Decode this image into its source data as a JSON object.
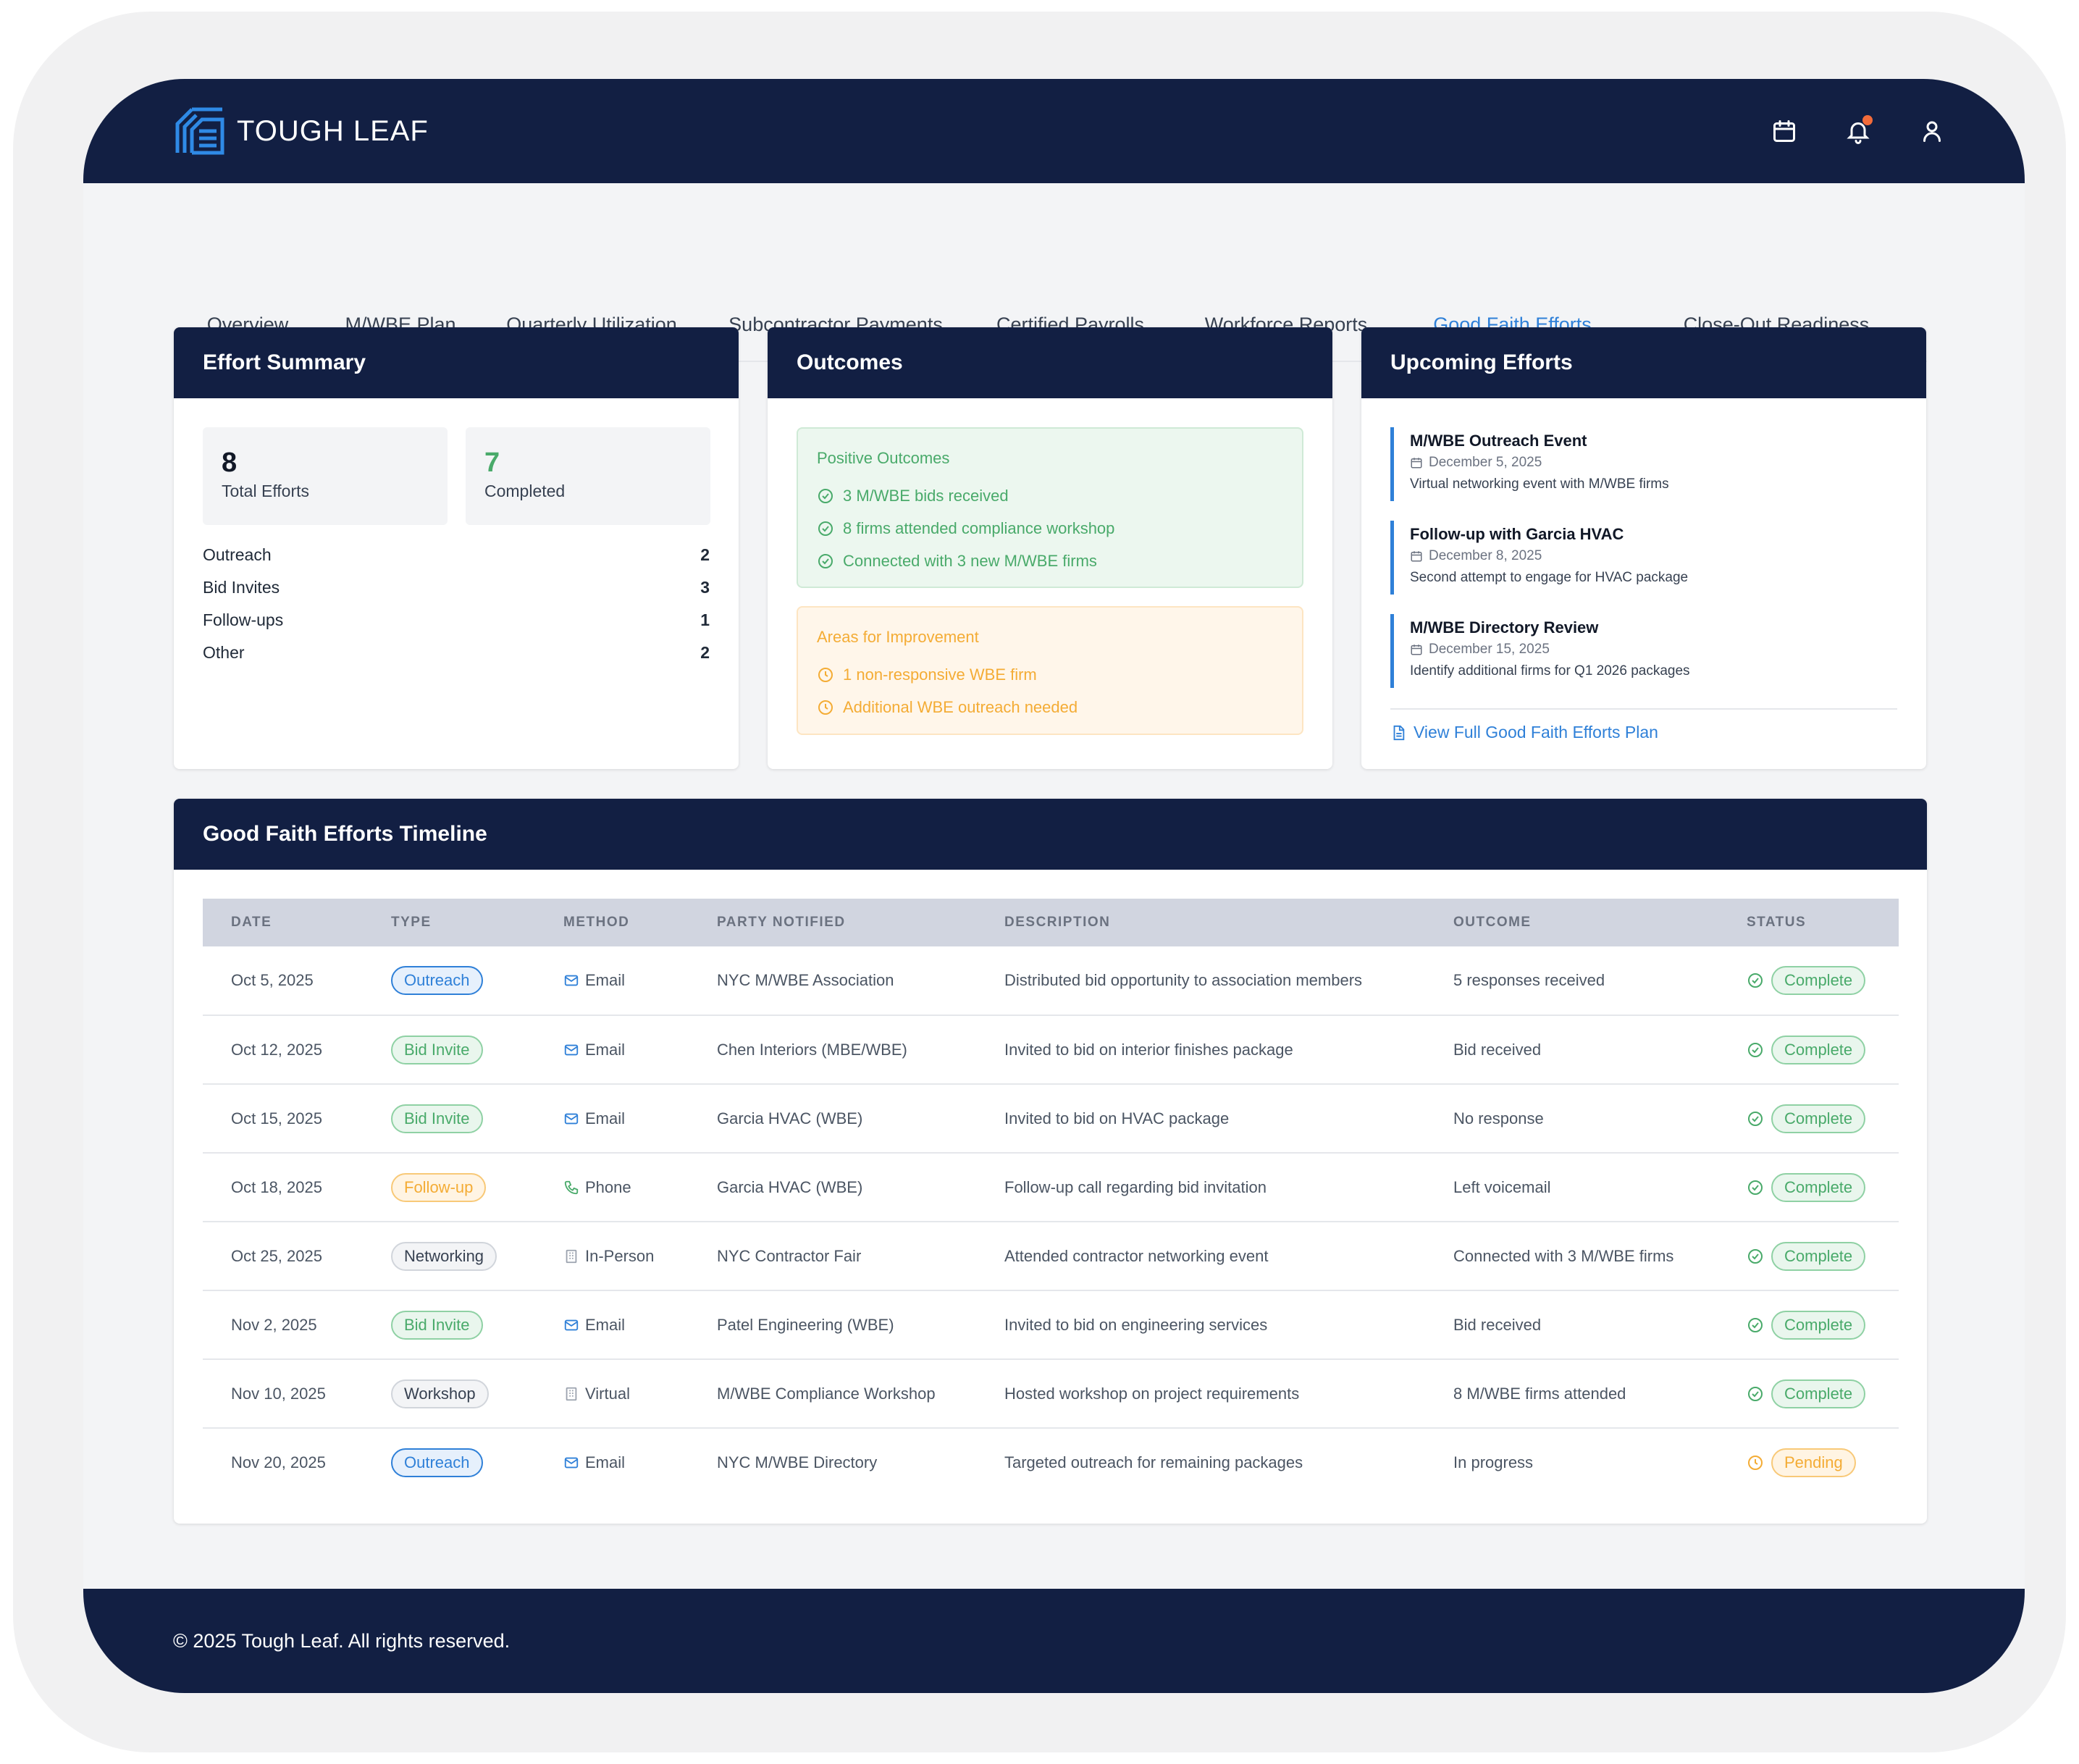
{
  "brand": {
    "name": "TOUGH LEAF"
  },
  "header": {
    "icons": [
      "calendar-icon",
      "bell-icon",
      "user-icon"
    ],
    "notification_color": "#f26b3a"
  },
  "tabs": [
    {
      "label": "Overview"
    },
    {
      "label": "M/WBE Plan"
    },
    {
      "label": "Quarterly Utilization"
    },
    {
      "label": "Subcontractor Payments"
    },
    {
      "label": "Certified Payrolls"
    },
    {
      "label": "Workforce Reports"
    },
    {
      "label": "Good Faith Efforts",
      "active": true
    },
    {
      "label": "Close-Out Readiness"
    }
  ],
  "effort_summary": {
    "title": "Effort Summary",
    "total": {
      "value": "8",
      "label": "Total Efforts"
    },
    "completed": {
      "value": "7",
      "label": "Completed"
    },
    "breakdown": [
      {
        "label": "Outreach",
        "value": "2"
      },
      {
        "label": "Bid Invites",
        "value": "3"
      },
      {
        "label": "Follow-ups",
        "value": "1"
      },
      {
        "label": "Other",
        "value": "2"
      }
    ]
  },
  "outcomes": {
    "title": "Outcomes",
    "positive": {
      "title": "Positive Outcomes",
      "items": [
        "3 M/WBE bids received",
        "8 firms attended compliance workshop",
        "Connected with 3 new M/WBE firms"
      ]
    },
    "improvement": {
      "title": "Areas for Improvement",
      "items": [
        "1 non-responsive WBE firm",
        "Additional WBE outreach needed"
      ]
    }
  },
  "upcoming": {
    "title": "Upcoming Efforts",
    "items": [
      {
        "title": "M/WBE Outreach Event",
        "date": "December 5, 2025",
        "desc": "Virtual networking event with M/WBE firms"
      },
      {
        "title": "Follow-up with Garcia HVAC",
        "date": "December 8, 2025",
        "desc": "Second attempt to engage for HVAC package"
      },
      {
        "title": "M/WBE Directory Review",
        "date": "December 15, 2025",
        "desc": "Identify additional firms for Q1 2026 packages"
      }
    ],
    "link": "View Full Good Faith Efforts Plan"
  },
  "timeline": {
    "title": "Good Faith Efforts Timeline",
    "columns": [
      "DATE",
      "TYPE",
      "METHOD",
      "PARTY NOTIFIED",
      "DESCRIPTION",
      "OUTCOME",
      "STATUS"
    ],
    "rows": [
      {
        "date": "Oct 5, 2025",
        "type": "Outreach",
        "type_style": "outreach",
        "method": "Email",
        "method_icon": "mail",
        "party": "NYC M/WBE Association",
        "desc": "Distributed bid opportunity to association members",
        "outcome": "5 responses received",
        "status": "Complete"
      },
      {
        "date": "Oct 12, 2025",
        "type": "Bid Invite",
        "type_style": "bid",
        "method": "Email",
        "method_icon": "mail",
        "party": "Chen Interiors (MBE/WBE)",
        "desc": "Invited to bid on interior finishes package",
        "outcome": "Bid received",
        "status": "Complete"
      },
      {
        "date": "Oct 15, 2025",
        "type": "Bid Invite",
        "type_style": "bid",
        "method": "Email",
        "method_icon": "mail",
        "party": "Garcia HVAC (WBE)",
        "desc": "Invited to bid on HVAC package",
        "outcome": "No response",
        "status": "Complete"
      },
      {
        "date": "Oct 18, 2025",
        "type": "Follow-up",
        "type_style": "follow",
        "method": "Phone",
        "method_icon": "phone",
        "party": "Garcia HVAC (WBE)",
        "desc": "Follow-up call regarding bid invitation",
        "outcome": "Left voicemail",
        "status": "Complete"
      },
      {
        "date": "Oct 25, 2025",
        "type": "Networking",
        "type_style": "gray",
        "method": "In-Person",
        "method_icon": "building",
        "party": "NYC Contractor Fair",
        "desc": "Attended contractor networking event",
        "outcome": "Connected with 3 M/WBE firms",
        "status": "Complete"
      },
      {
        "date": "Nov 2, 2025",
        "type": "Bid Invite",
        "type_style": "bid",
        "method": "Email",
        "method_icon": "mail",
        "party": "Patel Engineering (WBE)",
        "desc": "Invited to bid on engineering services",
        "outcome": "Bid received",
        "status": "Complete"
      },
      {
        "date": "Nov 10, 2025",
        "type": "Workshop",
        "type_style": "gray",
        "method": "Virtual",
        "method_icon": "building",
        "party": "M/WBE Compliance Workshop",
        "desc": "Hosted workshop on project requirements",
        "outcome": "8 M/WBE firms attended",
        "status": "Complete"
      },
      {
        "date": "Nov 20, 2025",
        "type": "Outreach",
        "type_style": "outreach",
        "method": "Email",
        "method_icon": "mail",
        "party": "NYC M/WBE Directory",
        "desc": "Targeted outreach for remaining packages",
        "outcome": "In progress",
        "status": "Pending"
      }
    ]
  },
  "footer": {
    "text": "© 2025 Tough Leaf. All rights reserved."
  },
  "colors": {
    "navy": "#121f43",
    "accent": "#2f80d8",
    "green": "#49aa6a",
    "amber": "#f4ac35"
  }
}
